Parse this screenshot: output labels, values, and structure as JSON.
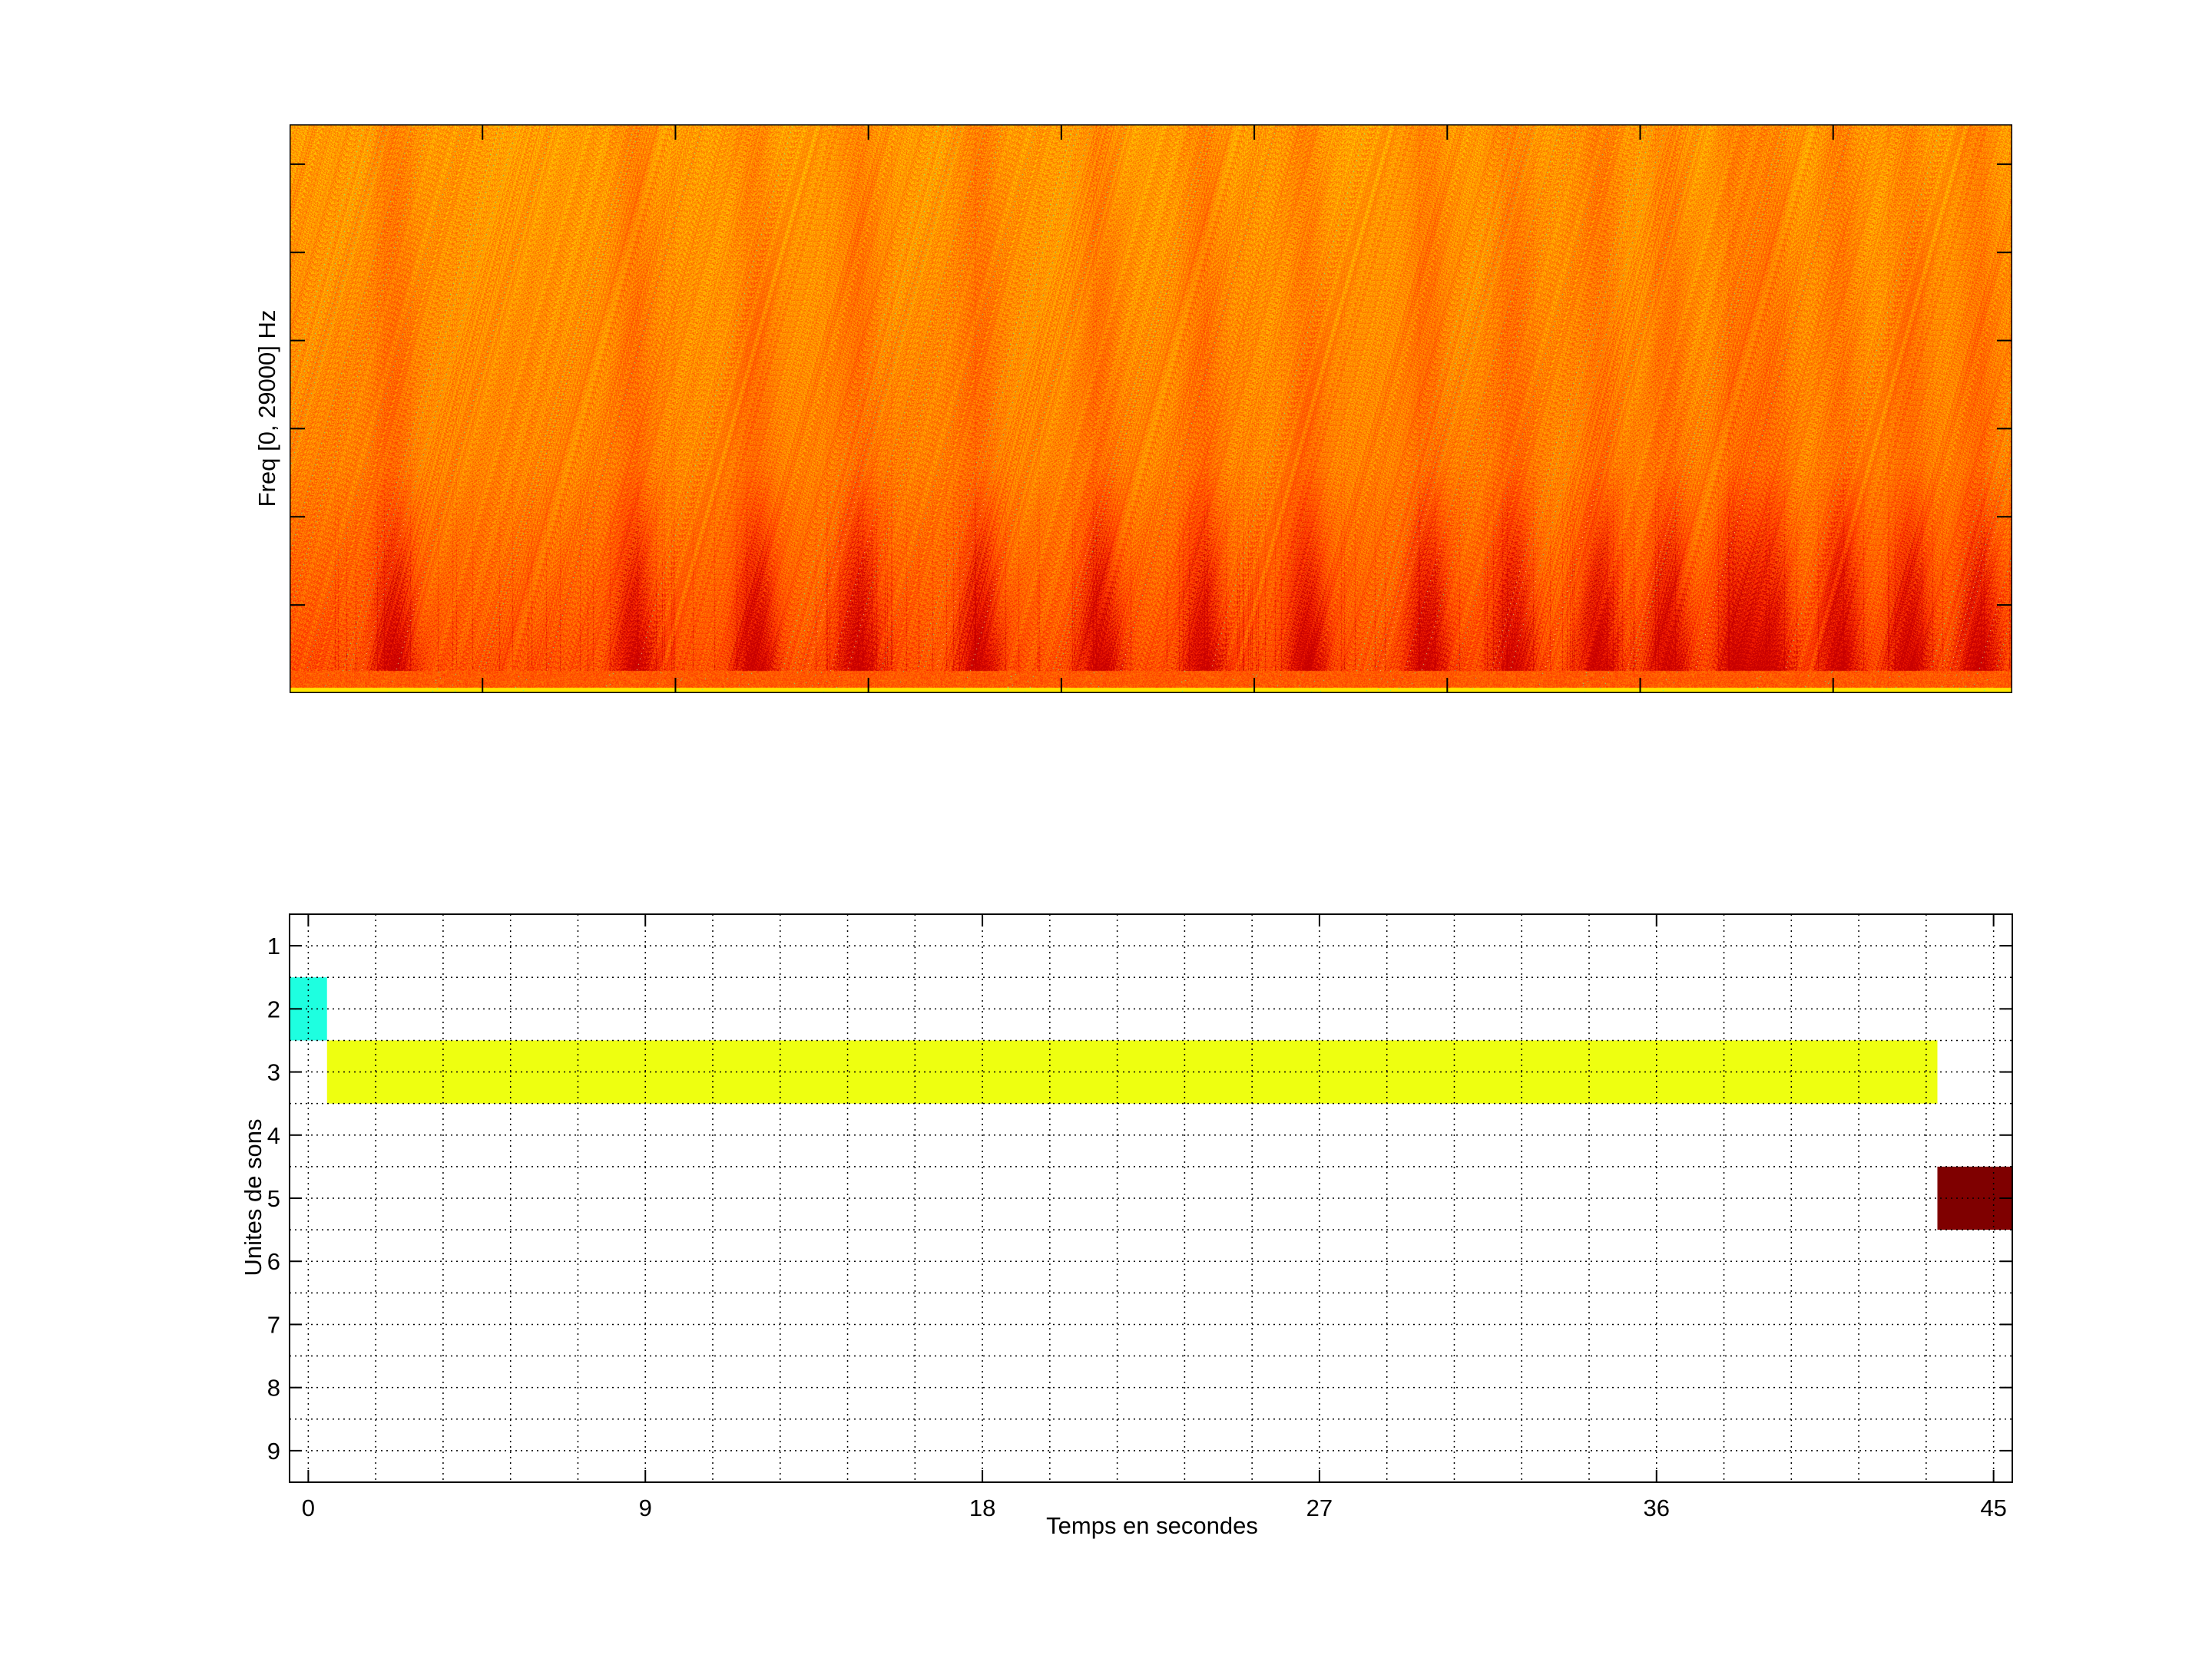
{
  "chart_data": [
    {
      "type": "heatmap",
      "title": "",
      "ylabel": "Freq [0, 29000] Hz",
      "xlabel": "",
      "y_tick_labels_shown": false,
      "x_tick_labels_shown": false,
      "colormap": "hot (red to yellow)",
      "colors": {
        "low": "#e00000",
        "mid": "#ff8c00",
        "high": "#ffff00"
      }
    },
    {
      "type": "heatmap",
      "title": "",
      "xlabel": "Temps en secondes",
      "ylabel": "Unites de sons",
      "xlim": [
        -0.5,
        45.5
      ],
      "ylim": [
        0.5,
        9.5
      ],
      "y_reversed": true,
      "x_ticks": [
        0,
        9,
        18,
        27,
        36,
        45
      ],
      "y_ticks": [
        1,
        2,
        3,
        4,
        5,
        6,
        7,
        8,
        9
      ],
      "grid": true,
      "segments": [
        {
          "unit": 2,
          "start": -0.5,
          "end": 0.5,
          "color": "#1effe0"
        },
        {
          "unit": 3,
          "start": 0.5,
          "end": 43.5,
          "color": "#eeff10"
        },
        {
          "unit": 5,
          "start": 43.5,
          "end": 45.5,
          "color": "#7f0000"
        }
      ]
    }
  ]
}
